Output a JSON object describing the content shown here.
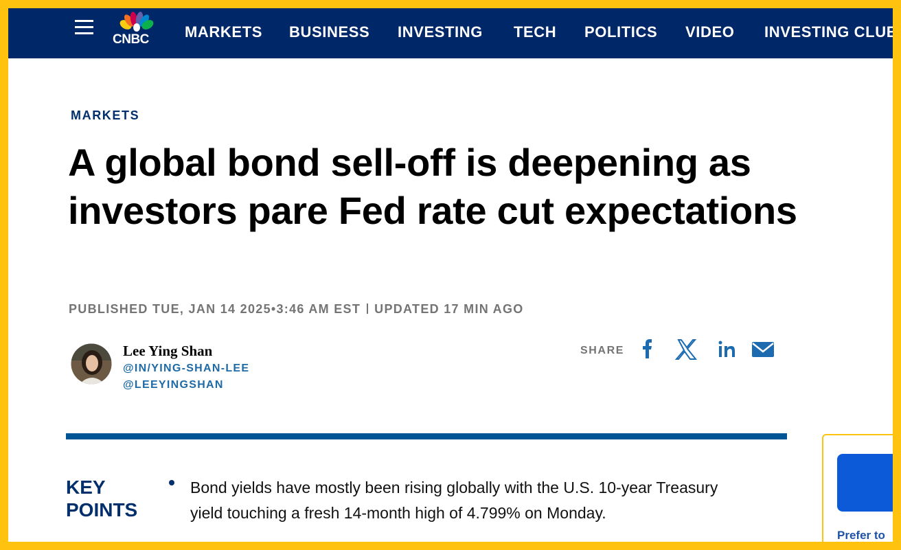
{
  "nav": {
    "logo": "CNBC",
    "items": [
      "MARKETS",
      "BUSINESS",
      "INVESTING",
      "TECH",
      "POLITICS",
      "VIDEO",
      "INVESTING CLUB"
    ]
  },
  "article": {
    "section": "MARKETS",
    "headline": "A global bond sell-off is deepening as investors pare Fed rate cut expectations",
    "published": "PUBLISHED TUE, JAN 14 2025•3:46 AM EST",
    "updated": "UPDATED 17 MIN AGO",
    "author": "Lee Ying Shan",
    "handles": [
      "@IN/YING-SHAN-LEE",
      "@LEEYINGSHAN"
    ],
    "share_label": "SHARE",
    "key_points_title": "KEY POINTS",
    "key_points": [
      "Bond yields have mostly been rising globally with the U.S. 10-year Treasury yield touching a fresh 14-month high of 4.799% on Monday."
    ]
  },
  "aside": {
    "text": "Prefer to"
  }
}
